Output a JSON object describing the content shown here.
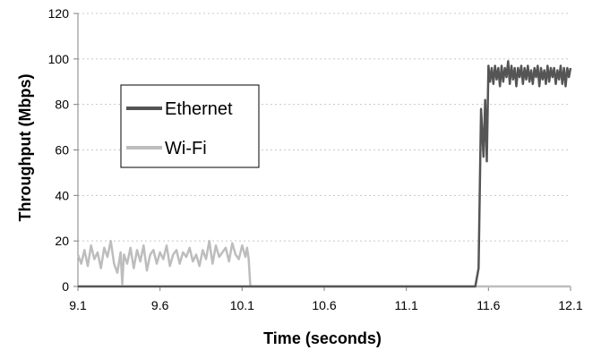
{
  "chart_data": {
    "type": "line",
    "title": "",
    "xlabel": "Time (seconds)",
    "ylabel": "Throughput (Mbps)",
    "xlim": [
      9.1,
      12.1
    ],
    "ylim": [
      0,
      120
    ],
    "x_ticks": [
      "9.1",
      "9.6",
      "10.1",
      "10.6",
      "11.1",
      "11.6",
      "12.1"
    ],
    "y_ticks": [
      "0",
      "20",
      "40",
      "60",
      "80",
      "100",
      "120"
    ],
    "grid": "horizontal dashed",
    "legend_position": "left-middle",
    "series": [
      {
        "name": "Ethernet",
        "color": "#555555",
        "x": [
          9.1,
          11.52,
          11.54,
          11.555,
          11.57,
          11.58,
          11.59,
          11.6,
          11.61,
          11.62,
          11.63,
          11.64,
          11.65,
          11.66,
          11.67,
          11.68,
          11.69,
          11.7,
          11.71,
          11.72,
          11.73,
          11.74,
          11.75,
          11.76,
          11.77,
          11.78,
          11.79,
          11.8,
          11.81,
          11.82,
          11.83,
          11.84,
          11.85,
          11.86,
          11.87,
          11.88,
          11.89,
          11.9,
          11.91,
          11.92,
          11.93,
          11.94,
          11.95,
          11.96,
          11.97,
          11.98,
          11.99,
          12.0,
          12.01,
          12.02,
          12.03,
          12.04,
          12.05,
          12.06,
          12.07,
          12.08,
          12.09,
          12.1
        ],
        "y": [
          0,
          0,
          8,
          78,
          57,
          82,
          55,
          97,
          90,
          96,
          89,
          97,
          91,
          96,
          88,
          97,
          90,
          96,
          92,
          99,
          89,
          97,
          91,
          96,
          88,
          96,
          92,
          97,
          89,
          96,
          91,
          97,
          90,
          95,
          89,
          96,
          92,
          97,
          88,
          96,
          91,
          95,
          89,
          97,
          90,
          96,
          92,
          96,
          89,
          95,
          91,
          97,
          89,
          96,
          88,
          96,
          92,
          96
        ]
      },
      {
        "name": "Wi-Fi",
        "color": "#bdbdbd",
        "x": [
          9.1,
          9.12,
          9.14,
          9.16,
          9.18,
          9.2,
          9.22,
          9.24,
          9.26,
          9.28,
          9.3,
          9.32,
          9.34,
          9.36,
          9.37,
          9.38,
          9.4,
          9.42,
          9.44,
          9.46,
          9.48,
          9.5,
          9.52,
          9.54,
          9.56,
          9.58,
          9.6,
          9.62,
          9.64,
          9.66,
          9.68,
          9.7,
          9.72,
          9.74,
          9.76,
          9.78,
          9.8,
          9.82,
          9.84,
          9.86,
          9.88,
          9.9,
          9.92,
          9.94,
          9.96,
          9.98,
          10.0,
          10.02,
          10.04,
          10.06,
          10.08,
          10.1,
          10.12,
          10.13,
          10.14,
          10.15,
          12.1
        ],
        "y": [
          14,
          10,
          16,
          9,
          18,
          12,
          15,
          8,
          17,
          13,
          20,
          10,
          6,
          15,
          1,
          14,
          10,
          17,
          8,
          16,
          11,
          18,
          7,
          14,
          16,
          10,
          15,
          12,
          18,
          9,
          14,
          16,
          10,
          15,
          13,
          17,
          11,
          14,
          9,
          16,
          12,
          20,
          10,
          18,
          13,
          15,
          17,
          11,
          19,
          14,
          12,
          18,
          13,
          17,
          12,
          0,
          0
        ]
      }
    ]
  }
}
